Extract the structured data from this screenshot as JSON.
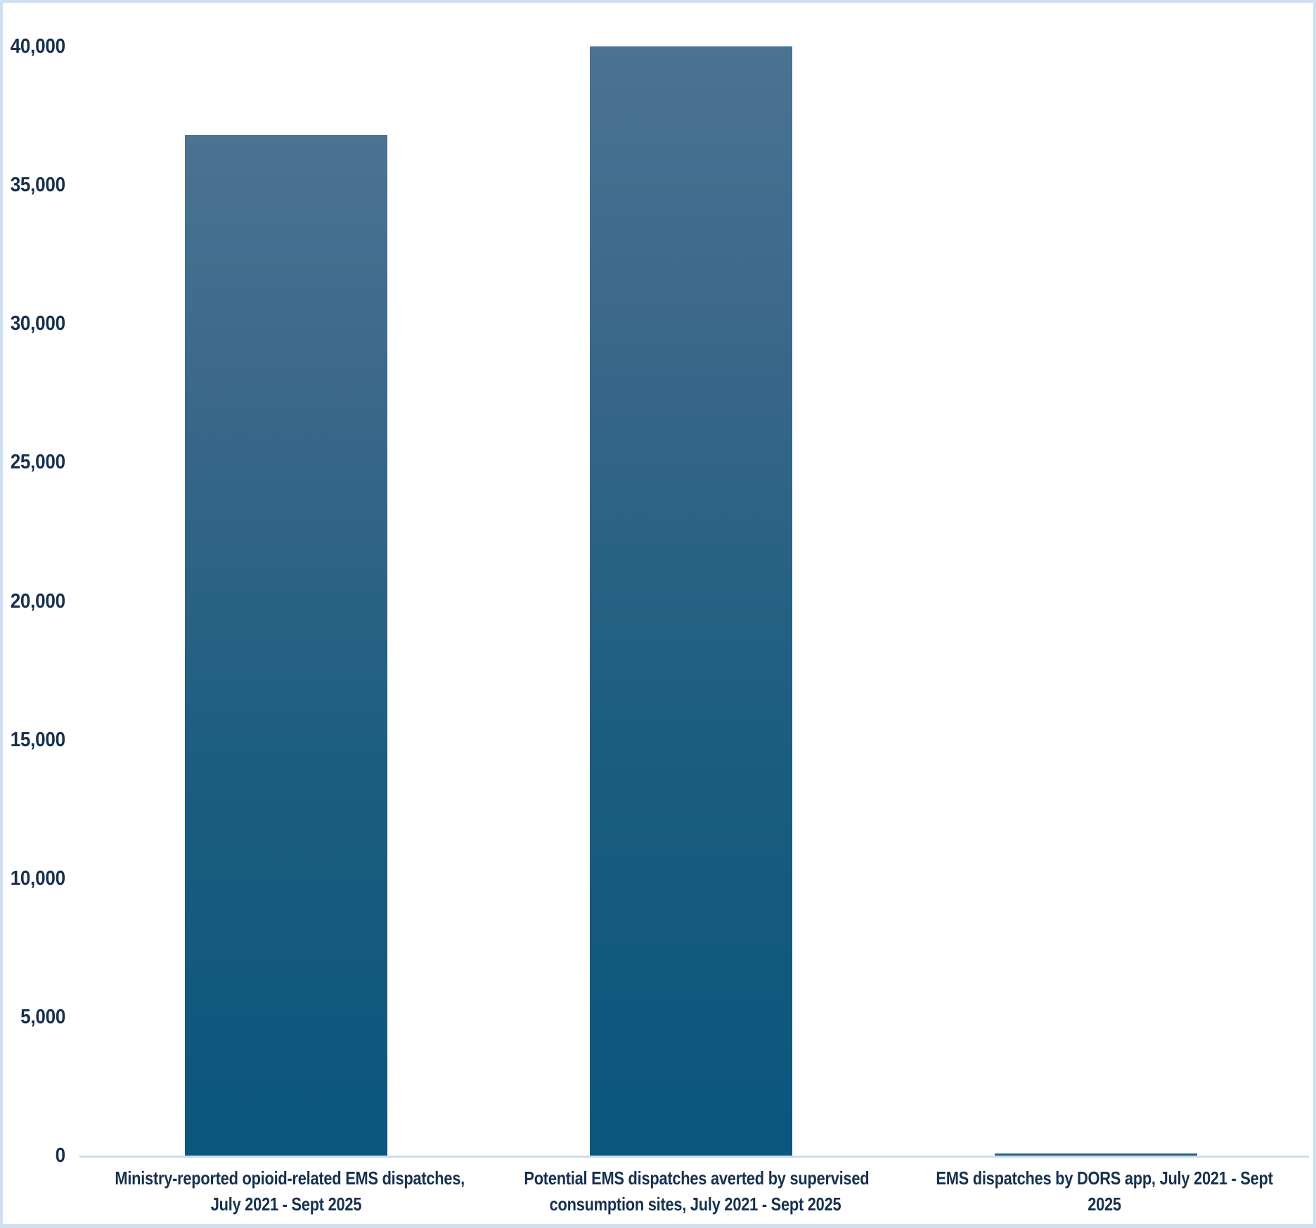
{
  "colors": {
    "text_navy": "#17304d",
    "bar_gradient_top": "#4b7392",
    "bar_gradient_bottom": "#0a567d",
    "axis_line": "#ccddf1",
    "frame_border": "#cfe0f3",
    "background": "#ffffff"
  },
  "chart_data": {
    "type": "bar",
    "title": "",
    "xlabel": "",
    "ylabel": "",
    "ylim": [
      0,
      40000
    ],
    "grid": false,
    "legend": false,
    "categories": [
      "Ministry-reported opioid-related EMS dispatches, July 2021 - Sept 2025",
      "Potential EMS dispatches averted by supervised consumption sites, July 2021 - Sept 2025",
      "EMS dispatches by DORS app, July 2021 - Sept 2025"
    ],
    "category_lines": [
      [
        "Ministry-reported opioid-related EMS dispatches,",
        "July 2021 - Sept 2025"
      ],
      [
        "Potential EMS dispatches averted by supervised",
        "consumption sites, July 2021 - Sept 2025"
      ],
      [
        "EMS dispatches by DORS app, July 2021 - Sept",
        "2025"
      ]
    ],
    "values": [
      36800,
      40000,
      75
    ],
    "yticklabels": [
      "40,000",
      "35,000",
      "30,000",
      "25,000",
      "20,000",
      "15,000",
      "10,000",
      "5,000",
      "0"
    ],
    "ytick_values": [
      40000,
      35000,
      30000,
      25000,
      20000,
      15000,
      10000,
      5000,
      0
    ]
  }
}
